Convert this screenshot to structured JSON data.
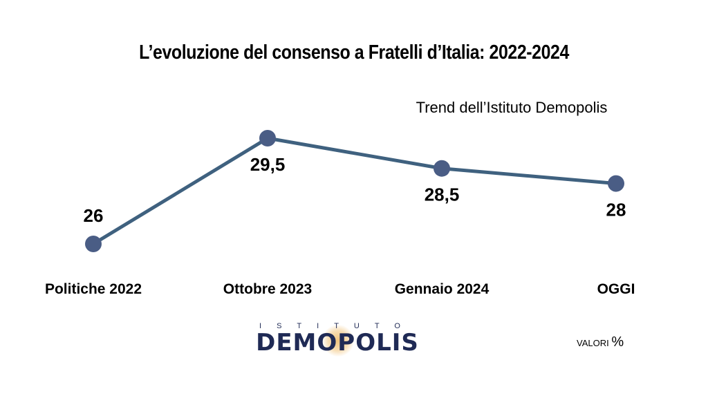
{
  "chart_data": {
    "type": "line",
    "title": "L’evoluzione del consenso a Fratelli d’Italia: 2022-2024",
    "subtitle": "Trend dell’Istituto Demopolis",
    "categories": [
      "Politiche 2022",
      "Ottobre 2023",
      "Gennaio 2024",
      "OGGI"
    ],
    "series": [
      {
        "values": [
          26,
          29.5,
          28.5,
          28
        ]
      }
    ],
    "data_labels": [
      "26",
      "29,5",
      "28,5",
      "28"
    ],
    "label_position": [
      "above",
      "below",
      "below",
      "below"
    ],
    "line_color": "#3f617f",
    "marker_color": "#4a5d85",
    "grid": false
  },
  "footer": {
    "logo_top": "ISTITUTO",
    "logo_main": "DEMOPOLIS",
    "units_label": "VALORI",
    "units_symbol": "%"
  }
}
